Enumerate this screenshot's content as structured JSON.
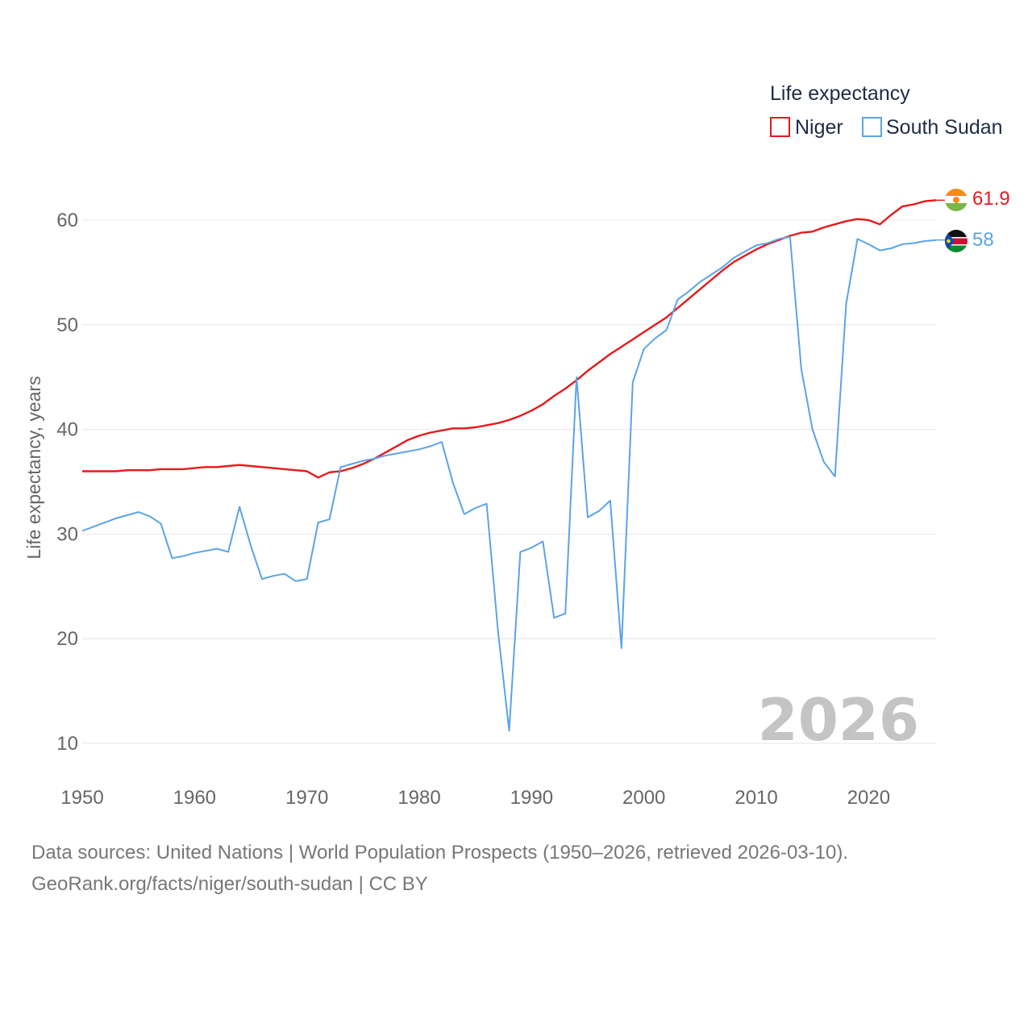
{
  "chart_data": {
    "type": "line",
    "title": "",
    "ylabel": "Life expectancy, years",
    "xlabel": "",
    "xlim": [
      1950,
      2026
    ],
    "ylim": [
      5,
      68
    ],
    "x_ticks": [
      1950,
      1960,
      1970,
      1980,
      1990,
      2000,
      2010,
      2020
    ],
    "y_ticks": [
      10,
      20,
      30,
      40,
      50,
      60
    ],
    "legend": {
      "title": "Life expectancy",
      "placement": "top-right"
    },
    "current_year": "2026",
    "x": [
      1950,
      1951,
      1952,
      1953,
      1954,
      1955,
      1956,
      1957,
      1958,
      1959,
      1960,
      1961,
      1962,
      1963,
      1964,
      1965,
      1966,
      1967,
      1968,
      1969,
      1970,
      1971,
      1972,
      1973,
      1974,
      1975,
      1976,
      1977,
      1978,
      1979,
      1980,
      1981,
      1982,
      1983,
      1984,
      1985,
      1986,
      1987,
      1988,
      1989,
      1990,
      1991,
      1992,
      1993,
      1994,
      1995,
      1996,
      1997,
      1998,
      1999,
      2000,
      2001,
      2002,
      2003,
      2004,
      2005,
      2006,
      2007,
      2008,
      2009,
      2010,
      2011,
      2012,
      2013,
      2014,
      2015,
      2016,
      2017,
      2018,
      2019,
      2020,
      2021,
      2022,
      2023,
      2024,
      2025,
      2026
    ],
    "series": [
      {
        "name": "Niger",
        "color": "#e41a1c",
        "end_label": "61.9",
        "values": [
          36.0,
          36.0,
          36.0,
          36.0,
          36.1,
          36.1,
          36.1,
          36.2,
          36.2,
          36.2,
          36.3,
          36.4,
          36.4,
          36.5,
          36.6,
          36.5,
          36.4,
          36.3,
          36.2,
          36.1,
          36.0,
          35.4,
          35.9,
          36.0,
          36.3,
          36.7,
          37.2,
          37.8,
          38.4,
          39.0,
          39.4,
          39.7,
          39.9,
          40.1,
          40.1,
          40.2,
          40.4,
          40.6,
          40.9,
          41.3,
          41.8,
          42.4,
          43.2,
          43.9,
          44.7,
          45.6,
          46.4,
          47.2,
          47.9,
          48.6,
          49.3,
          50.0,
          50.7,
          51.6,
          52.5,
          53.4,
          54.3,
          55.2,
          56.0,
          56.6,
          57.2,
          57.7,
          58.1,
          58.5,
          58.8,
          58.9,
          59.3,
          59.6,
          59.9,
          60.1,
          60.0,
          59.6,
          60.5,
          61.3,
          61.5,
          61.8,
          61.9
        ]
      },
      {
        "name": "South Sudan",
        "color": "#5ba3e6",
        "end_label": "58",
        "values": [
          30.3,
          30.7,
          31.1,
          31.5,
          31.8,
          32.1,
          31.7,
          31.0,
          27.7,
          27.9,
          28.2,
          28.4,
          28.6,
          28.3,
          32.6,
          28.9,
          25.7,
          26.0,
          26.2,
          25.5,
          25.7,
          31.1,
          31.4,
          36.4,
          36.7,
          37.0,
          37.2,
          37.5,
          37.7,
          37.9,
          38.1,
          38.4,
          38.8,
          34.9,
          31.9,
          32.5,
          32.9,
          20.8,
          11.2,
          28.3,
          28.7,
          29.3,
          22.0,
          22.4,
          45.0,
          31.6,
          32.2,
          33.2,
          19.1,
          44.5,
          47.7,
          48.7,
          49.5,
          52.4,
          53.2,
          54.1,
          54.8,
          55.5,
          56.4,
          57.0,
          57.6,
          57.8,
          58.2,
          58.4,
          45.8,
          40.0,
          36.9,
          35.5,
          52.0,
          58.2,
          57.7,
          57.1,
          57.3,
          57.7,
          57.8,
          58.0,
          58.1
        ]
      }
    ]
  },
  "footer": {
    "line1": "Data sources: United Nations | World Population Prospects (1950–2026, retrieved 2026-03-10).",
    "line2": "GeoRank.org/facts/niger/south-sudan | CC BY"
  }
}
